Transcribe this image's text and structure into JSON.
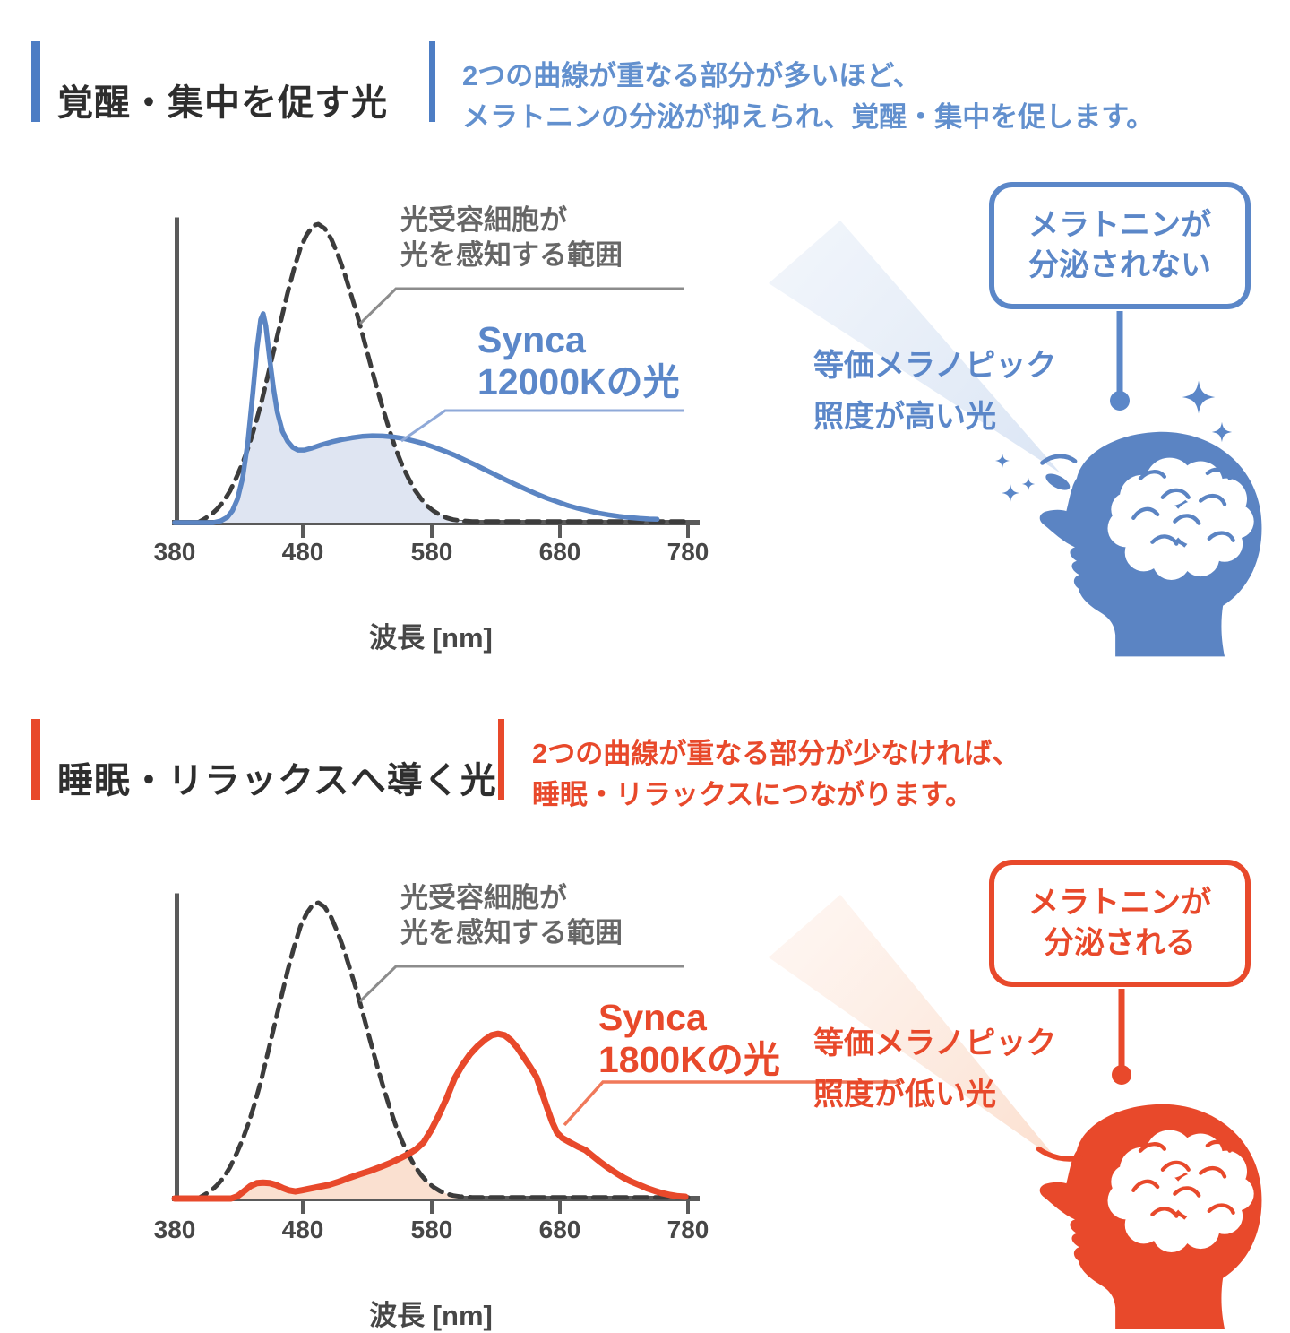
{
  "page": {
    "background": "#ffffff"
  },
  "sections": [
    {
      "id": "wake",
      "title": "覚醒・集中を促す光",
      "accent_color": "#4d7dc4",
      "description_color": "#6290ce",
      "description": [
        "2つの曲線が重なる部分が多いほど、",
        "メラトニンの分泌が抑えられ、覚醒・集中を促します。"
      ],
      "sensor_label": [
        "光受容細胞が",
        "光を感知する範囲"
      ],
      "curve_label": [
        "Synca",
        "12000Kの光"
      ],
      "beam_label": [
        "等価メラノピック",
        "照度が高い光"
      ],
      "bubble": {
        "lines": [
          "メラトニンが",
          "分泌されない"
        ],
        "color": "#5b87c8"
      },
      "head_color": "#5b84c3",
      "beam_color": "#dde7f5",
      "has_sparkles": true
    },
    {
      "id": "sleep",
      "title": "睡眠・リラックスへ導く光",
      "accent_color": "#e8492b",
      "description_color": "#e8492b",
      "description": [
        "2つの曲線が重なる部分が少なければ、",
        "睡眠・リラックスにつながります。"
      ],
      "sensor_label": [
        "光受容細胞が",
        "光を感知する範囲"
      ],
      "curve_label": [
        "Synca",
        "1800Kの光"
      ],
      "beam_label": [
        "等価メラノピック",
        "照度が低い光"
      ],
      "bubble": {
        "lines": [
          "メラトニンが",
          "分泌される"
        ],
        "color": "#e8492b"
      },
      "head_color": "#e8492b",
      "beam_color": "#fce5d8",
      "has_sparkles": false
    }
  ],
  "chart_data": [
    {
      "type": "line",
      "title": "Synca 12000Kの光と光受容細胞の感度の重なり",
      "xlabel": "波長 [nm]",
      "ylabel": "",
      "x_range": [
        380,
        780
      ],
      "x_ticks": [
        "380",
        "480",
        "580",
        "680",
        "780"
      ],
      "grid": false,
      "legend_position": "annotations",
      "series": [
        {
          "name": "光受容細胞が光を感知する範囲",
          "style": "dashed",
          "color": "#3c3c3c",
          "points": [
            [
              380,
              0
            ],
            [
              398,
              0
            ],
            [
              403,
              0.012
            ],
            [
              408,
              0.025
            ],
            [
              413,
              0.045
            ],
            [
              418,
              0.07
            ],
            [
              423,
              0.105
            ],
            [
              428,
              0.15
            ],
            [
              433,
              0.2
            ],
            [
              438,
              0.26
            ],
            [
              443,
              0.33
            ],
            [
              448,
              0.41
            ],
            [
              453,
              0.5
            ],
            [
              458,
              0.59
            ],
            [
              463,
              0.68
            ],
            [
              468,
              0.77
            ],
            [
              473,
              0.85
            ],
            [
              478,
              0.92
            ],
            [
              483,
              0.965
            ],
            [
              488,
              0.995
            ],
            [
              492,
              1.0
            ],
            [
              497,
              0.985
            ],
            [
              502,
              0.95
            ],
            [
              507,
              0.9
            ],
            [
              512,
              0.84
            ],
            [
              517,
              0.77
            ],
            [
              522,
              0.7
            ],
            [
              527,
              0.62
            ],
            [
              532,
              0.54
            ],
            [
              537,
              0.46
            ],
            [
              542,
              0.385
            ],
            [
              547,
              0.315
            ],
            [
              552,
              0.25
            ],
            [
              557,
              0.195
            ],
            [
              562,
              0.15
            ],
            [
              567,
              0.11
            ],
            [
              572,
              0.08
            ],
            [
              577,
              0.055
            ],
            [
              582,
              0.038
            ],
            [
              587,
              0.025
            ],
            [
              592,
              0.016
            ],
            [
              597,
              0.01
            ],
            [
              602,
              0.007
            ],
            [
              612,
              0.004
            ],
            [
              630,
              0.004
            ],
            [
              660,
              0.004
            ],
            [
              700,
              0.004
            ],
            [
              740,
              0.004
            ],
            [
              780,
              0.004
            ]
          ]
        },
        {
          "name": "Synca 12000Kの光",
          "style": "solid",
          "color": "#5b85c3",
          "fill_overlap": "#dfe5f2",
          "points": [
            [
              380,
              0
            ],
            [
              410,
              0
            ],
            [
              416,
              0.006
            ],
            [
              421,
              0.018
            ],
            [
              425,
              0.04
            ],
            [
              429,
              0.08
            ],
            [
              433,
              0.15
            ],
            [
              437,
              0.27
            ],
            [
              441,
              0.44
            ],
            [
              444,
              0.58
            ],
            [
              447,
              0.68
            ],
            [
              449,
              0.7
            ],
            [
              451,
              0.66
            ],
            [
              454,
              0.55
            ],
            [
              457,
              0.45
            ],
            [
              460,
              0.37
            ],
            [
              464,
              0.305
            ],
            [
              468,
              0.272
            ],
            [
              472,
              0.252
            ],
            [
              476,
              0.243
            ],
            [
              481,
              0.243
            ],
            [
              487,
              0.25
            ],
            [
              494,
              0.26
            ],
            [
              502,
              0.27
            ],
            [
              510,
              0.278
            ],
            [
              518,
              0.284
            ],
            [
              526,
              0.289
            ],
            [
              534,
              0.291
            ],
            [
              542,
              0.29
            ],
            [
              550,
              0.287
            ],
            [
              558,
              0.282
            ],
            [
              566,
              0.274
            ],
            [
              574,
              0.265
            ],
            [
              582,
              0.253
            ],
            [
              590,
              0.24
            ],
            [
              598,
              0.226
            ],
            [
              606,
              0.21
            ],
            [
              614,
              0.194
            ],
            [
              622,
              0.177
            ],
            [
              630,
              0.16
            ],
            [
              638,
              0.143
            ],
            [
              646,
              0.127
            ],
            [
              654,
              0.111
            ],
            [
              662,
              0.096
            ],
            [
              670,
              0.082
            ],
            [
              678,
              0.07
            ],
            [
              686,
              0.058
            ],
            [
              694,
              0.048
            ],
            [
              702,
              0.04
            ],
            [
              710,
              0.032
            ],
            [
              718,
              0.026
            ],
            [
              726,
              0.021
            ],
            [
              734,
              0.017
            ],
            [
              742,
              0.014
            ],
            [
              750,
              0.012
            ],
            [
              756,
              0.011
            ]
          ]
        }
      ]
    },
    {
      "type": "line",
      "title": "Synca 1800Kの光と光受容細胞の感度の重なり",
      "xlabel": "波長 [nm]",
      "ylabel": "",
      "x_range": [
        380,
        780
      ],
      "x_ticks": [
        "380",
        "480",
        "580",
        "680",
        "780"
      ],
      "grid": false,
      "legend_position": "annotations",
      "series": [
        {
          "name": "光受容細胞が光を感知する範囲",
          "style": "dashed",
          "color": "#3c3c3c",
          "points": [
            [
              380,
              0
            ],
            [
              398,
              0
            ],
            [
              403,
              0.012
            ],
            [
              408,
              0.025
            ],
            [
              413,
              0.045
            ],
            [
              418,
              0.07
            ],
            [
              423,
              0.105
            ],
            [
              428,
              0.15
            ],
            [
              433,
              0.2
            ],
            [
              438,
              0.26
            ],
            [
              443,
              0.33
            ],
            [
              448,
              0.41
            ],
            [
              453,
              0.5
            ],
            [
              458,
              0.59
            ],
            [
              463,
              0.68
            ],
            [
              468,
              0.77
            ],
            [
              473,
              0.85
            ],
            [
              478,
              0.92
            ],
            [
              483,
              0.965
            ],
            [
              488,
              0.995
            ],
            [
              492,
              1.0
            ],
            [
              497,
              0.985
            ],
            [
              502,
              0.95
            ],
            [
              507,
              0.9
            ],
            [
              512,
              0.84
            ],
            [
              517,
              0.77
            ],
            [
              522,
              0.7
            ],
            [
              527,
              0.62
            ],
            [
              532,
              0.54
            ],
            [
              537,
              0.46
            ],
            [
              542,
              0.385
            ],
            [
              547,
              0.315
            ],
            [
              552,
              0.25
            ],
            [
              557,
              0.195
            ],
            [
              562,
              0.15
            ],
            [
              567,
              0.11
            ],
            [
              572,
              0.08
            ],
            [
              577,
              0.055
            ],
            [
              582,
              0.038
            ],
            [
              587,
              0.025
            ],
            [
              592,
              0.016
            ],
            [
              597,
              0.01
            ],
            [
              602,
              0.007
            ],
            [
              612,
              0.004
            ],
            [
              630,
              0.004
            ],
            [
              660,
              0.004
            ],
            [
              700,
              0.004
            ],
            [
              740,
              0.004
            ],
            [
              780,
              0.004
            ]
          ]
        },
        {
          "name": "Synca 1800Kの光",
          "style": "solid",
          "color": "#e8492b",
          "fill_overlap": "#fae0d0",
          "points": [
            [
              380,
              0
            ],
            [
              424,
              0
            ],
            [
              429,
              0.008
            ],
            [
              434,
              0.025
            ],
            [
              439,
              0.042
            ],
            [
              444,
              0.052
            ],
            [
              449,
              0.054
            ],
            [
              454,
              0.052
            ],
            [
              459,
              0.046
            ],
            [
              464,
              0.036
            ],
            [
              469,
              0.028
            ],
            [
              474,
              0.024
            ],
            [
              479,
              0.028
            ],
            [
              485,
              0.033
            ],
            [
              492,
              0.039
            ],
            [
              500,
              0.046
            ],
            [
              508,
              0.057
            ],
            [
              516,
              0.07
            ],
            [
              524,
              0.082
            ],
            [
              532,
              0.093
            ],
            [
              540,
              0.106
            ],
            [
              548,
              0.12
            ],
            [
              556,
              0.137
            ],
            [
              562,
              0.15
            ],
            [
              568,
              0.166
            ],
            [
              574,
              0.19
            ],
            [
              580,
              0.232
            ],
            [
              586,
              0.283
            ],
            [
              592,
              0.34
            ],
            [
              598,
              0.405
            ],
            [
              604,
              0.45
            ],
            [
              610,
              0.487
            ],
            [
              616,
              0.515
            ],
            [
              622,
              0.538
            ],
            [
              627,
              0.552
            ],
            [
              632,
              0.557
            ],
            [
              637,
              0.552
            ],
            [
              642,
              0.535
            ],
            [
              647,
              0.51
            ],
            [
              652,
              0.478
            ],
            [
              657,
              0.445
            ],
            [
              662,
              0.41
            ],
            [
              666,
              0.36
            ],
            [
              670,
              0.31
            ],
            [
              674,
              0.26
            ],
            [
              678,
              0.222
            ],
            [
              682,
              0.205
            ],
            [
              688,
              0.19
            ],
            [
              694,
              0.176
            ],
            [
              700,
              0.164
            ],
            [
              706,
              0.143
            ],
            [
              712,
              0.122
            ],
            [
              718,
              0.103
            ],
            [
              724,
              0.086
            ],
            [
              730,
              0.07
            ],
            [
              736,
              0.057
            ],
            [
              742,
              0.046
            ],
            [
              748,
              0.035
            ],
            [
              754,
              0.026
            ],
            [
              760,
              0.018
            ],
            [
              766,
              0.012
            ],
            [
              772,
              0.008
            ],
            [
              778,
              0.006
            ]
          ]
        }
      ]
    }
  ]
}
